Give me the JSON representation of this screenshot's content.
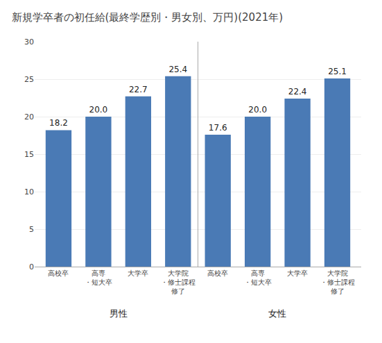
{
  "chart_data": {
    "type": "bar",
    "title": "新規学卒者の初任給(最終学歴別・男女別、万円)(2021年)",
    "categories": [
      "高校卒",
      "高専\n・短大卒",
      "大学卒",
      "大学院\n・修士課程\n修了",
      "高校卒",
      "高専\n・短大卒",
      "大学卒",
      "大学院\n・修士課程\n修了"
    ],
    "values": [
      18.2,
      20.0,
      22.7,
      25.4,
      17.6,
      20.0,
      22.4,
      25.1
    ],
    "value_labels": [
      "18.2",
      "20.0",
      "22.7",
      "25.4",
      "17.6",
      "20.0",
      "22.4",
      "25.1"
    ],
    "data_labels": true,
    "color": "#4a7ab5",
    "annotations": [
      "男性",
      "女性"
    ],
    "ylim": [
      0,
      30
    ],
    "yticks": [
      0,
      5,
      10,
      15,
      20,
      25,
      30
    ],
    "grid": true
  }
}
